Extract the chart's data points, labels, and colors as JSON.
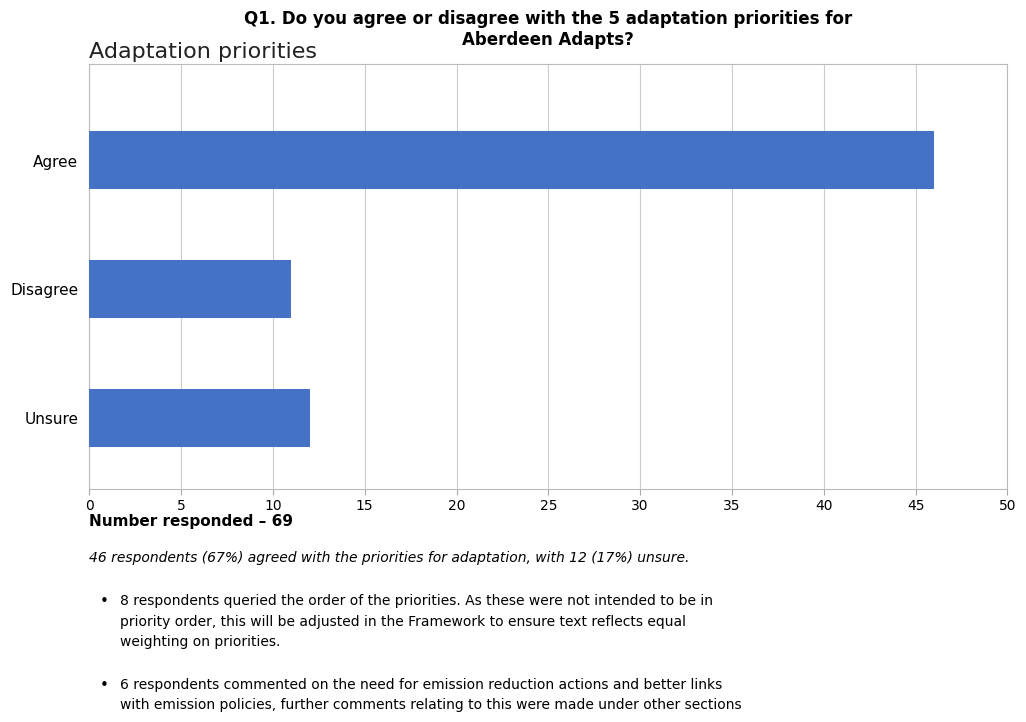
{
  "page_title": "Adaptation priorities",
  "chart_title": "Q1. Do you agree or disagree with the 5 adaptation priorities for\nAberdeen Adapts?",
  "categories": [
    "Agree",
    "Disagree",
    "Unsure"
  ],
  "values": [
    46,
    11,
    12
  ],
  "bar_color": "#4472C4",
  "xlim": [
    0,
    50
  ],
  "xticks": [
    0,
    5,
    10,
    15,
    20,
    25,
    30,
    35,
    40,
    45,
    50
  ],
  "background_color": "#ffffff",
  "chart_background": "#ffffff",
  "grid_color": "#cccccc",
  "number_responded_label": "Number responded – 69",
  "italic_text": "46 respondents (67%) agreed with the priorities for adaptation, with 12 (17%) unsure.",
  "bullet1": "8 respondents queried the order of the priorities. As these were not intended to be in\npriority order, this will be adjusted in the Framework to ensure text reflects equal\nweighting on priorities.",
  "bullet2": "6 respondents commented on the need for emission reduction actions and better links\nwith emission policies, further comments relating to this were made under other sections"
}
